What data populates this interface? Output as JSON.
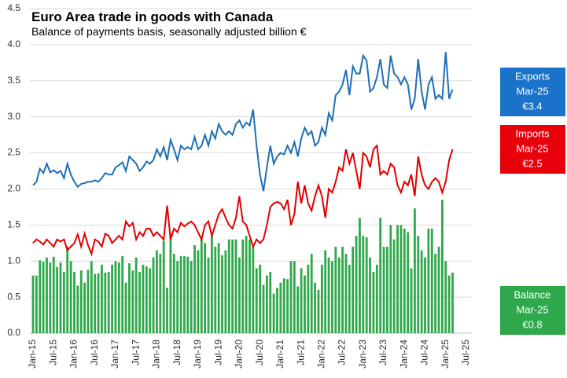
{
  "chart_data": {
    "type": "bar_line",
    "title": "Euro Area trade in goods with Canada",
    "subtitle": "Balance of payments basis, seasonally adjusted billion €",
    "categories": [
      "Jan-15",
      null,
      null,
      null,
      null,
      null,
      "Jul-15",
      null,
      null,
      null,
      null,
      null,
      "Jan-16",
      null,
      null,
      null,
      null,
      null,
      "Jul-16",
      null,
      null,
      null,
      null,
      null,
      "Jan-17",
      null,
      null,
      null,
      null,
      null,
      "Jul-17",
      null,
      null,
      null,
      null,
      null,
      "Jan-18",
      null,
      null,
      null,
      null,
      null,
      "Jul-18",
      null,
      null,
      null,
      null,
      null,
      "Jan-19",
      null,
      null,
      null,
      null,
      null,
      "Jul-19",
      null,
      null,
      null,
      null,
      null,
      "Jan-20",
      null,
      null,
      null,
      null,
      null,
      "Jul-20",
      null,
      null,
      null,
      null,
      null,
      "Jan-21",
      null,
      null,
      null,
      null,
      null,
      "Jul-21",
      null,
      null,
      null,
      null,
      null,
      "Jan-22",
      null,
      null,
      null,
      null,
      null,
      "Jul-22",
      null,
      null,
      null,
      null,
      null,
      "Jan-23",
      null,
      null,
      null,
      null,
      null,
      "Jul-23",
      null,
      null,
      null,
      null,
      null,
      "Jan-24",
      null,
      null,
      null,
      null,
      null,
      "Jul-24",
      null,
      null,
      null,
      null,
      null,
      "Jan-25",
      null,
      null,
      null,
      null,
      null,
      "Jul-25"
    ],
    "series": [
      {
        "name": "Balance",
        "kind": "bar",
        "color": "#2ea84a",
        "values": [
          0.8,
          0.8,
          1.01,
          0.99,
          1.05,
          0.98,
          1.06,
          0.92,
          0.98,
          0.85,
          1.2,
          1.0,
          0.85,
          0.66,
          0.87,
          0.7,
          0.88,
          1.0,
          0.82,
          0.83,
          0.95,
          0.84,
          0.85,
          0.95,
          1.0,
          0.98,
          1.07,
          0.7,
          0.97,
          0.87,
          1.05,
          0.85,
          0.95,
          0.93,
          0.9,
          1.05,
          1.15,
          1.1,
          1.28,
          0.63,
          1.38,
          1.1,
          1.0,
          1.07,
          1.07,
          1.06,
          1.0,
          1.22,
          1.15,
          1.3,
          1.25,
          1.05,
          1.35,
          1.2,
          1.25,
          1.08,
          1.15,
          1.3,
          1.3,
          1.3,
          1.05,
          1.3,
          1.35,
          1.3,
          1.2,
          0.9,
          0.95,
          0.67,
          0.8,
          0.85,
          0.55,
          0.63,
          0.7,
          0.76,
          0.75,
          1.0,
          1.0,
          0.65,
          0.9,
          0.8,
          0.95,
          1.1,
          0.7,
          0.6,
          0.95,
          1.15,
          1.05,
          1.0,
          1.2,
          1.05,
          1.2,
          1.1,
          0.95,
          1.2,
          1.35,
          1.6,
          1.35,
          1.33,
          1.05,
          0.85,
          0.95,
          1.6,
          1.2,
          1.2,
          1.5,
          1.3,
          1.5,
          1.5,
          1.45,
          1.4,
          0.9,
          1.73,
          1.35,
          1.15,
          1.05,
          1.45,
          1.45,
          1.1,
          1.2,
          1.85,
          1.0,
          0.8,
          0.84,
          null,
          null,
          null,
          null
        ]
      },
      {
        "name": "Exports",
        "kind": "line",
        "color": "#1f6fb5",
        "values": [
          2.05,
          2.1,
          2.28,
          2.22,
          2.35,
          2.23,
          2.26,
          2.22,
          2.25,
          2.15,
          2.35,
          2.2,
          2.1,
          2.03,
          2.07,
          2.08,
          2.1,
          2.1,
          2.12,
          2.1,
          2.15,
          2.22,
          2.2,
          2.2,
          2.3,
          2.33,
          2.37,
          2.25,
          2.45,
          2.4,
          2.35,
          2.25,
          2.3,
          2.38,
          2.35,
          2.4,
          2.55,
          2.45,
          2.58,
          2.4,
          2.68,
          2.55,
          2.4,
          2.6,
          2.55,
          2.58,
          2.55,
          2.72,
          2.55,
          2.6,
          2.75,
          2.6,
          2.8,
          2.7,
          2.9,
          2.8,
          2.75,
          2.8,
          2.75,
          2.9,
          2.95,
          2.85,
          2.92,
          2.88,
          3.1,
          2.6,
          2.2,
          1.97,
          2.3,
          2.6,
          2.35,
          2.45,
          2.5,
          2.48,
          2.6,
          2.5,
          2.65,
          2.45,
          2.7,
          2.85,
          2.75,
          2.8,
          2.6,
          2.65,
          2.85,
          2.75,
          3.05,
          2.95,
          3.3,
          3.35,
          3.45,
          3.65,
          3.3,
          3.7,
          3.6,
          3.6,
          3.85,
          3.78,
          3.35,
          3.4,
          3.55,
          3.8,
          3.45,
          3.4,
          3.85,
          3.6,
          3.55,
          3.45,
          3.55,
          3.45,
          3.1,
          3.25,
          3.8,
          3.35,
          3.1,
          3.45,
          3.55,
          3.25,
          3.3,
          3.25,
          3.9,
          3.25,
          3.38,
          null,
          null,
          null,
          null
        ]
      },
      {
        "name": "Imports",
        "kind": "line",
        "color": "#e00000",
        "values": [
          1.25,
          1.3,
          1.27,
          1.23,
          1.3,
          1.25,
          1.2,
          1.3,
          1.27,
          1.3,
          1.15,
          1.2,
          1.25,
          1.37,
          1.2,
          1.38,
          1.22,
          1.1,
          1.3,
          1.27,
          1.2,
          1.38,
          1.35,
          1.25,
          1.3,
          1.35,
          1.3,
          1.55,
          1.48,
          1.53,
          1.3,
          1.4,
          1.35,
          1.45,
          1.45,
          1.35,
          1.4,
          1.35,
          1.3,
          1.77,
          1.3,
          1.45,
          1.4,
          1.53,
          1.48,
          1.52,
          1.55,
          1.5,
          1.4,
          1.3,
          1.5,
          1.55,
          1.35,
          1.5,
          1.65,
          1.72,
          1.6,
          1.5,
          1.45,
          1.6,
          1.9,
          1.55,
          1.5,
          1.35,
          1.2,
          1.3,
          1.25,
          1.3,
          1.5,
          1.75,
          1.8,
          1.82,
          1.8,
          1.72,
          1.85,
          1.5,
          1.65,
          2.1,
          1.8,
          2.05,
          1.8,
          1.7,
          1.9,
          2.05,
          1.9,
          1.6,
          2.0,
          1.95,
          2.1,
          2.3,
          2.25,
          2.55,
          2.35,
          2.5,
          2.25,
          2.0,
          2.5,
          2.45,
          2.3,
          2.55,
          2.6,
          2.2,
          2.25,
          2.2,
          2.35,
          2.3,
          2.05,
          1.95,
          2.1,
          2.05,
          2.2,
          1.9,
          2.45,
          2.2,
          2.05,
          2.0,
          2.1,
          2.15,
          2.1,
          1.95,
          2.1,
          2.4,
          2.55,
          null,
          null,
          null,
          null
        ]
      }
    ],
    "ylim": [
      0,
      4.5
    ],
    "yticks": [
      {
        "value": 0,
        "label": "0.0"
      },
      0.5,
      {
        "value": 1,
        "label": "1.0"
      },
      1.5,
      {
        "value": 2,
        "label": "2.0"
      },
      2.5,
      {
        "value": 3,
        "label": "3.0"
      },
      3.5,
      {
        "value": 4,
        "label": "4.0"
      },
      4.5
    ],
    "grid": true,
    "callouts": [
      {
        "series": "Exports",
        "color": "#1a73c8",
        "lines": [
          "Exports",
          "Mar-25",
          "€3.4"
        ]
      },
      {
        "series": "Imports",
        "color": "#e8000b",
        "lines": [
          "Imports",
          "Mar-25",
          "€2.5"
        ]
      },
      {
        "series": "Balance",
        "color": "#2ea84a",
        "lines": [
          "Balance",
          "Mar-25",
          "€0.8"
        ]
      }
    ]
  }
}
